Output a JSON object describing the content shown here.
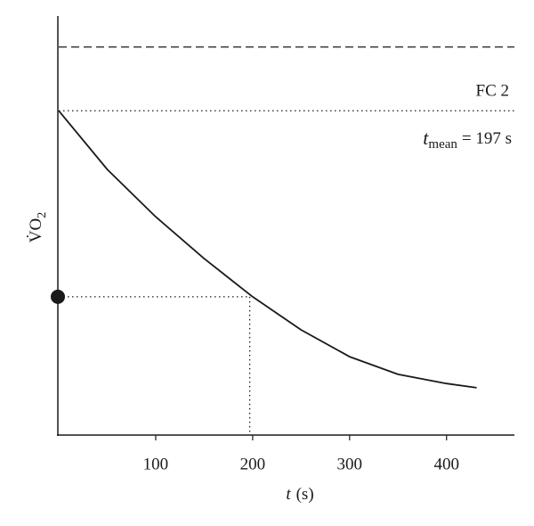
{
  "chart_data": {
    "type": "line",
    "x_label": [
      "t",
      "(s)"
    ],
    "y_label": [
      "V̇O",
      "2"
    ],
    "xlim": [
      0,
      470
    ],
    "ylim": [
      0,
      1
    ],
    "xticks": [
      100,
      200,
      300,
      400
    ],
    "series": [
      {
        "color": "#1a1a1a",
        "x": [
          0,
          50,
          100,
          150,
          200,
          250,
          300,
          350,
          400,
          431
        ],
        "values": [
          0.774,
          0.634,
          0.521,
          0.421,
          0.33,
          0.251,
          0.187,
          0.145,
          0.123,
          0.113
        ]
      }
    ],
    "hlines": [
      {
        "value": 0.926,
        "style": "dashed"
      },
      {
        "value": 0.774,
        "style": "dotted",
        "label": "FC 2"
      }
    ],
    "annotation": [
      "t",
      "mean",
      "= 197 s"
    ],
    "crosshair": {
      "x": 197,
      "y": 0.33
    }
  }
}
